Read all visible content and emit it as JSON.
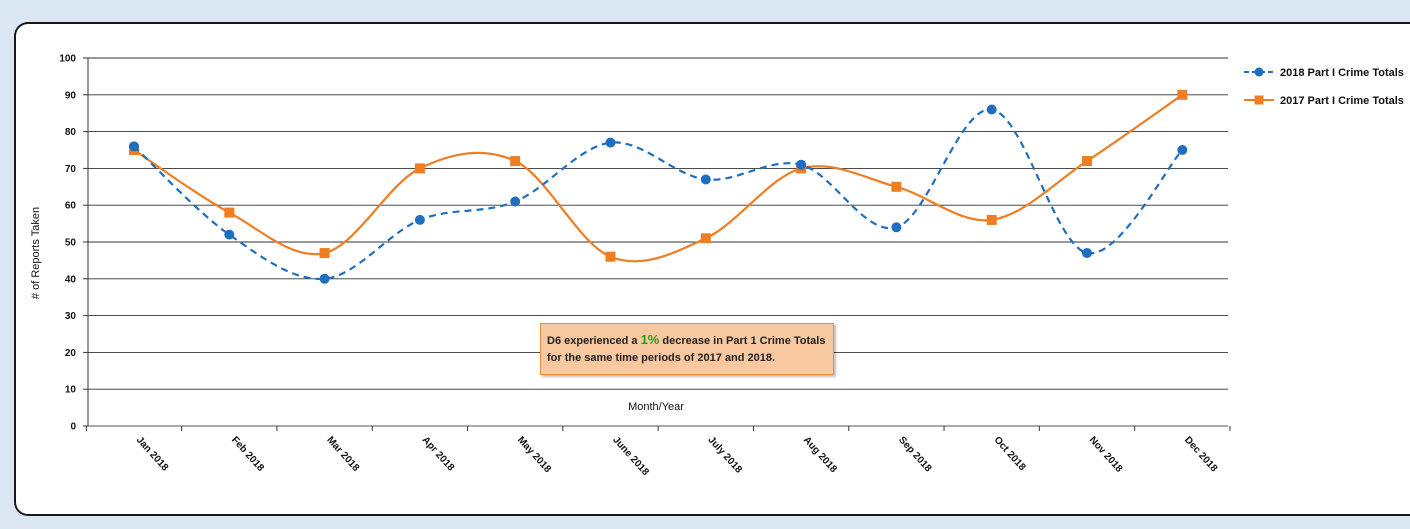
{
  "chart_data": {
    "type": "line",
    "xlabel": "Month/Year",
    "ylabel": "# of Reports Taken",
    "ylim": [
      0,
      100
    ],
    "yticks": [
      0,
      10,
      20,
      30,
      40,
      50,
      60,
      70,
      80,
      90,
      100
    ],
    "grid": true,
    "legend_position": "right",
    "categories": [
      "Jan 2018",
      "Feb 2018",
      "Mar 2018",
      "Apr 2018",
      "May 2018",
      "June 2018",
      "July 2018",
      "Aug 2018",
      "Sep 2018",
      "Oct 2018",
      "Nov 2018",
      "Dec 2018"
    ],
    "series": [
      {
        "name": "2018 Part I Crime Totals",
        "color": "#1f6fc0",
        "line_style": "dashed",
        "marker": "circle",
        "values": [
          76,
          52,
          40,
          56,
          61,
          77,
          67,
          71,
          54,
          86,
          47,
          75
        ]
      },
      {
        "name": "2017 Part I Crime Totals",
        "color": "#ef7d22",
        "line_style": "solid",
        "marker": "square",
        "values": [
          75,
          58,
          47,
          70,
          72,
          46,
          51,
          70,
          65,
          56,
          72,
          90
        ]
      }
    ],
    "annotation": {
      "text_before": "D6 experienced a",
      "highlight": "1%",
      "text_after": "decrease in Part 1 Crime Totals",
      "line2": "for the same time periods of 2017 and 2018.",
      "highlight_color": "#19a319",
      "fill": "#f8c9a0",
      "border": "#e98a3c"
    }
  }
}
